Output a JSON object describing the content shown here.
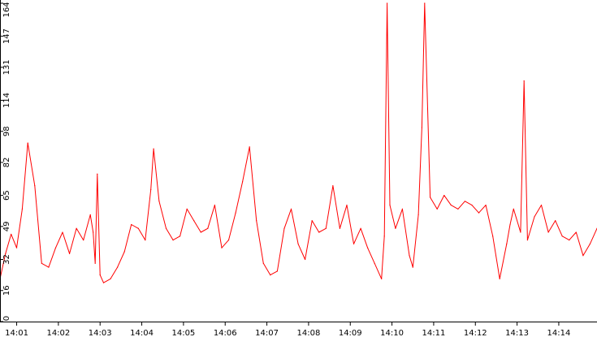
{
  "chart_data": {
    "type": "line",
    "title": "",
    "xlabel": "",
    "ylabel": "",
    "ylim": [
      0,
      164
    ],
    "grid": false,
    "legend": "none",
    "series_color": "#ff0000",
    "y_ticks": [
      0,
      16,
      32,
      49,
      65,
      82,
      98,
      114,
      131,
      147,
      164
    ],
    "y_tick_labels": [
      "0",
      "16",
      "32",
      "49",
      "65",
      "82",
      "98",
      "114",
      "131",
      "147",
      "164"
    ],
    "x_range": [
      "14:00:36",
      "14:14:55"
    ],
    "x_ticks": [
      "14:01",
      "14:02",
      "14:03",
      "14:04",
      "14:05",
      "14:06",
      "14:07",
      "14:08",
      "14:09",
      "14:10",
      "14:11",
      "14:12",
      "14:13",
      "14:14"
    ],
    "series": [
      {
        "x": [
          "14:00:36",
          "14:00:44",
          "14:00:52",
          "14:01:00",
          "14:01:08",
          "14:01:16",
          "14:01:26",
          "14:01:36",
          "14:01:46",
          "14:01:56",
          "14:02:06",
          "14:02:16",
          "14:02:26",
          "14:02:36",
          "14:02:46",
          "14:02:50",
          "14:02:53",
          "14:02:56",
          "14:03:00",
          "14:03:05",
          "14:03:15",
          "14:03:25",
          "14:03:35",
          "14:03:45",
          "14:03:55",
          "14:04:05",
          "14:04:13",
          "14:04:17",
          "14:04:25",
          "14:04:35",
          "14:04:45",
          "14:04:55",
          "14:05:05",
          "14:05:15",
          "14:05:25",
          "14:05:35",
          "14:05:45",
          "14:05:55",
          "14:06:05",
          "14:06:15",
          "14:06:25",
          "14:06:35",
          "14:06:45",
          "14:06:55",
          "14:07:05",
          "14:07:15",
          "14:07:25",
          "14:07:35",
          "14:07:45",
          "14:07:55",
          "14:08:05",
          "14:08:15",
          "14:08:25",
          "14:08:35",
          "14:08:45",
          "14:08:55",
          "14:09:05",
          "14:09:15",
          "14:09:25",
          "14:09:35",
          "14:09:45",
          "14:09:49",
          "14:09:53",
          "14:09:57",
          "14:10:05",
          "14:10:15",
          "14:10:25",
          "14:10:30",
          "14:10:38",
          "14:10:43",
          "14:10:47",
          "14:10:55",
          "14:11:05",
          "14:11:15",
          "14:11:25",
          "14:11:35",
          "14:11:45",
          "14:11:55",
          "14:12:05",
          "14:12:15",
          "14:12:25",
          "14:12:35",
          "14:12:45",
          "14:12:50",
          "14:12:55",
          "14:13:05",
          "14:13:10",
          "14:13:15",
          "14:13:25",
          "14:13:35",
          "14:13:45",
          "14:13:55",
          "14:14:05",
          "14:14:15",
          "14:14:25",
          "14:14:35",
          "14:14:45",
          "14:14:55"
        ],
        "values": [
          22,
          35,
          45,
          38,
          58,
          92,
          70,
          30,
          28,
          38,
          46,
          35,
          48,
          42,
          55,
          46,
          30,
          76,
          24,
          20,
          22,
          28,
          36,
          50,
          48,
          42,
          68,
          89,
          62,
          48,
          42,
          44,
          58,
          52,
          46,
          48,
          60,
          38,
          42,
          56,
          72,
          90,
          52,
          30,
          24,
          26,
          48,
          58,
          40,
          32,
          52,
          46,
          48,
          70,
          48,
          60,
          40,
          48,
          38,
          30,
          22,
          44,
          168,
          60,
          48,
          58,
          34,
          28,
          55,
          100,
          164,
          64,
          58,
          65,
          60,
          58,
          62,
          60,
          56,
          60,
          44,
          22,
          40,
          50,
          58,
          46,
          124,
          42,
          54,
          60,
          46,
          52,
          44,
          42,
          46,
          34,
          40,
          48
        ]
      }
    ]
  }
}
